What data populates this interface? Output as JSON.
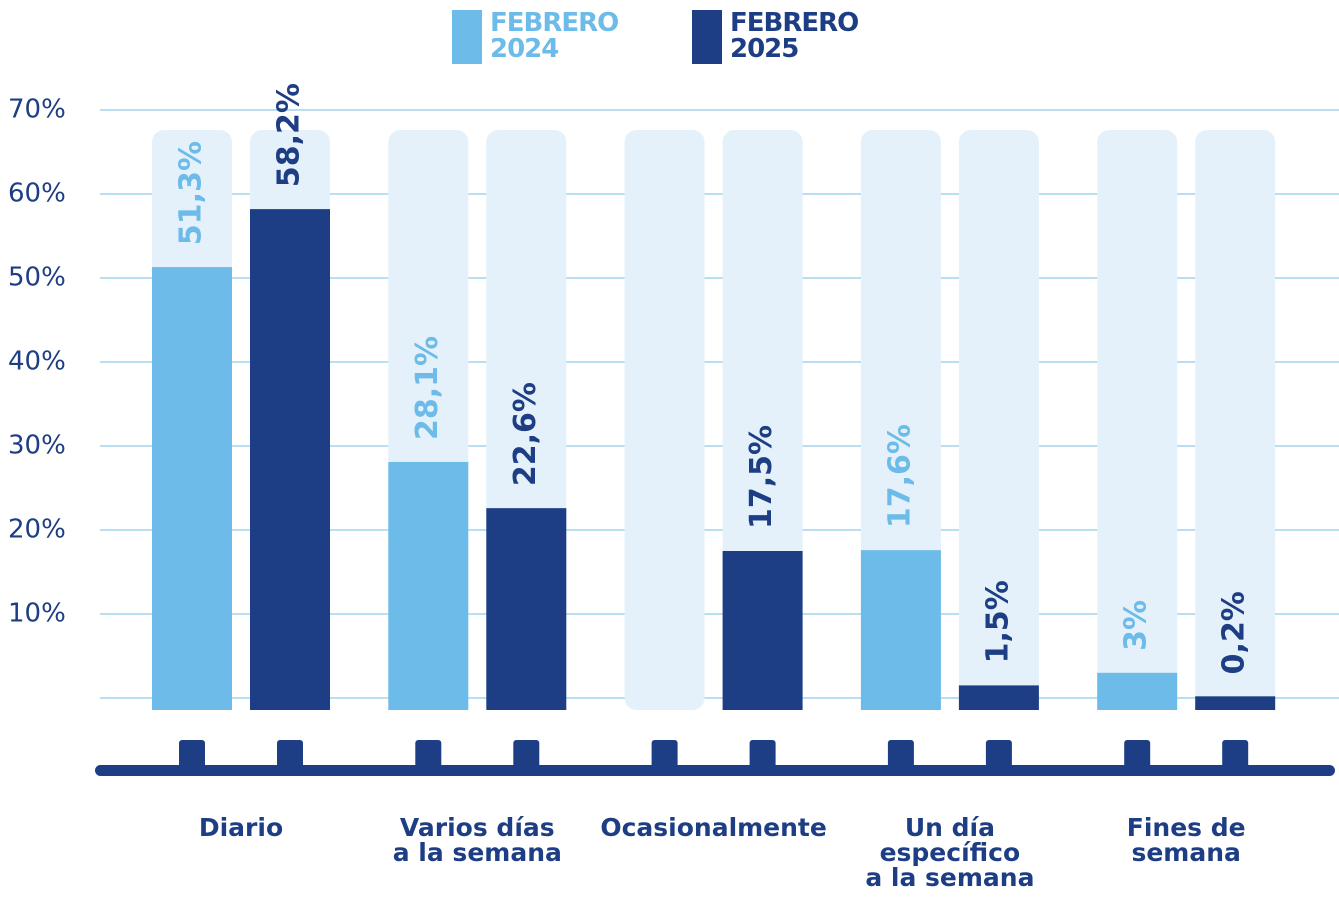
{
  "chart_data": {
    "type": "bar",
    "categories": [
      "Diario",
      "Varios días\na la semana",
      "Ocasionalmente",
      "Un día\nespecífico\na la semana",
      "Fines de\nsemana"
    ],
    "series": [
      {
        "name": "FEBRERO\n2024",
        "color": "#6dbbe8",
        "values": [
          51.3,
          28.1,
          null,
          17.6,
          3
        ],
        "value_labels": [
          "51,3%",
          "28,1%",
          null,
          "17,6%",
          "3%"
        ]
      },
      {
        "name": "FEBRERO\n2025",
        "color": "#1d3e84",
        "values": [
          58.2,
          22.6,
          17.5,
          1.5,
          0.2
        ],
        "value_labels": [
          "58,2%",
          "22,6%",
          "17,5%",
          "1,5%",
          "0,2%"
        ]
      }
    ],
    "ylim": [
      0,
      70
    ],
    "yticks": [
      {
        "value": 10,
        "label": "10%"
      },
      {
        "value": 20,
        "label": "20%"
      },
      {
        "value": 30,
        "label": "30%"
      },
      {
        "value": 40,
        "label": "40%"
      },
      {
        "value": 50,
        "label": "50%"
      },
      {
        "value": 60,
        "label": "60%"
      },
      {
        "value": 70,
        "label": "70%"
      }
    ],
    "grid": true
  }
}
